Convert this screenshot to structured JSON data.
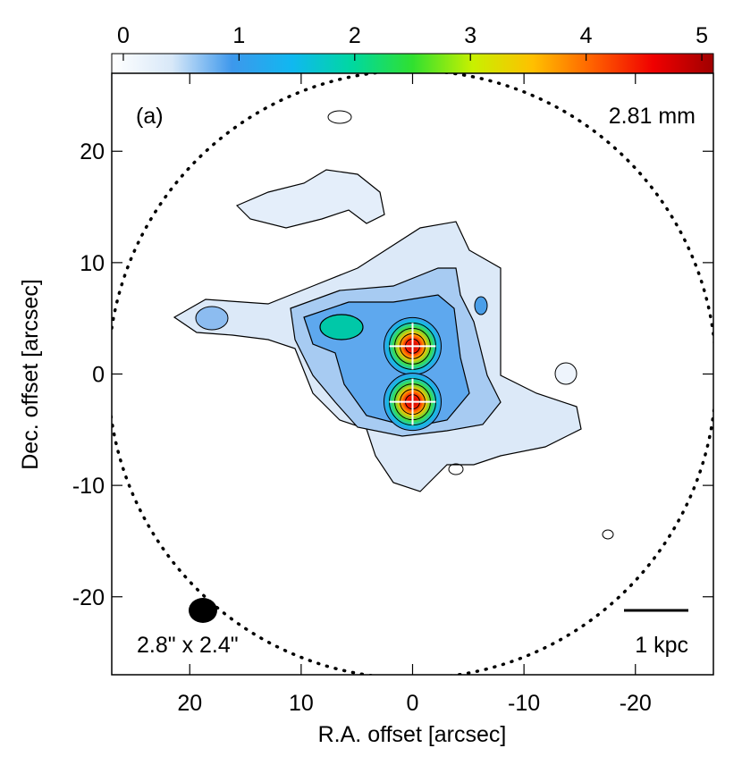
{
  "chart_data": {
    "type": "map",
    "panel_label": "(a)",
    "wavelength_label": "2.81 mm",
    "beam_label": "2.8\" x 2.4\"",
    "scale_bar_label": "1 kpc",
    "xlabel": "R.A. offset [arcsec]",
    "ylabel": "Dec. offset [arcsec]",
    "xlim": [
      27,
      -27
    ],
    "ylim": [
      -27,
      27
    ],
    "xticks": [
      20,
      10,
      0,
      -10,
      -20
    ],
    "yticks": [
      -20,
      -10,
      0,
      10,
      20
    ],
    "colorbar_lim": [
      -0.1,
      5.1
    ],
    "colorbar_ticks": [
      0,
      1,
      2,
      3,
      4,
      5
    ],
    "nuclei": [
      {
        "x": 0,
        "y": 2.5
      },
      {
        "x": 0,
        "y": -2.5
      }
    ]
  }
}
